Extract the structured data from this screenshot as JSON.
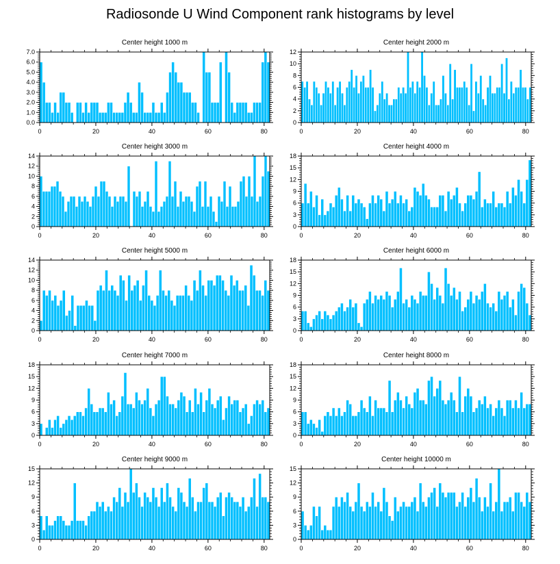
{
  "title": "Radiosonde U Wind Component rank histograms by level",
  "colors": {
    "bar_fill": "#00BFFF",
    "bar_stroke": "#ffffff",
    "axis": "#000000"
  },
  "chart_data": [
    {
      "type": "bar",
      "title": "Center height 1000 m",
      "xlim": [
        0,
        82
      ],
      "ylim": [
        0,
        7
      ],
      "xticks": [
        0,
        20,
        40,
        60,
        80
      ],
      "yticks": [
        0,
        1,
        2,
        3,
        4,
        5,
        6,
        7
      ],
      "ytick_labels": [
        "0.0",
        "1.0",
        "2.0",
        "3.0",
        "4.0",
        "5.0",
        "6.0",
        "7.0"
      ],
      "values": [
        6,
        4,
        2,
        2,
        1,
        2,
        1,
        3,
        3,
        2,
        2,
        1,
        0,
        2,
        2,
        1,
        2,
        1,
        2,
        2,
        2,
        1,
        1,
        1,
        2,
        2,
        1,
        1,
        1,
        1,
        2,
        3,
        2,
        1,
        1,
        4,
        3,
        1,
        1,
        1,
        2,
        1,
        1,
        2,
        1,
        3,
        5,
        6,
        5,
        4,
        4,
        3,
        3,
        3,
        2,
        2,
        1,
        0,
        7,
        5,
        5,
        2,
        2,
        2,
        6,
        0,
        7,
        5,
        2,
        1,
        2,
        2,
        2,
        2,
        1,
        1,
        2,
        2,
        2,
        6,
        7,
        6
      ],
      "xlabel": "",
      "ylabel": ""
    },
    {
      "type": "bar",
      "title": "Center height 2000 m",
      "xlim": [
        0,
        82
      ],
      "ylim": [
        0,
        12
      ],
      "xticks": [
        0,
        20,
        40,
        60,
        80
      ],
      "yticks": [
        0,
        2,
        4,
        6,
        8,
        10,
        12
      ],
      "ytick_labels": [
        "0",
        "2",
        "4",
        "6",
        "8",
        "10",
        "12"
      ],
      "values": [
        7,
        6,
        7,
        4,
        3,
        7,
        6,
        5,
        3,
        5,
        7,
        6,
        5,
        7,
        3,
        6,
        7,
        5,
        3,
        6,
        7,
        9,
        6,
        8,
        5,
        7,
        8,
        6,
        6,
        9,
        6,
        2,
        3,
        5,
        7,
        4,
        5,
        3,
        3,
        4,
        4,
        6,
        5,
        6,
        5,
        12,
        6,
        7,
        5,
        7,
        6,
        12,
        8,
        6,
        3,
        5,
        7,
        3,
        3,
        4,
        8,
        5,
        3,
        10,
        4,
        9,
        6,
        6,
        6,
        7,
        6,
        3,
        10,
        2,
        7,
        5,
        8,
        4,
        3,
        6,
        8,
        5,
        5,
        6,
        6,
        10,
        5,
        11,
        4,
        7,
        5,
        6,
        6,
        9,
        6,
        6,
        4,
        6
      ],
      "xlabel": "",
      "ylabel": ""
    },
    {
      "type": "bar",
      "title": "Center height 3000 m",
      "xlim": [
        0,
        82
      ],
      "ylim": [
        0,
        14
      ],
      "xticks": [
        0,
        20,
        40,
        60,
        80
      ],
      "yticks": [
        0,
        2,
        4,
        6,
        8,
        10,
        12,
        14
      ],
      "ytick_labels": [
        "0",
        "2",
        "4",
        "6",
        "8",
        "10",
        "12",
        "14"
      ],
      "values": [
        10,
        7,
        7,
        7,
        8,
        8,
        9,
        7,
        6,
        3,
        5,
        6,
        6,
        4,
        6,
        5,
        6,
        5,
        4,
        6,
        8,
        6,
        9,
        9,
        7,
        6,
        4,
        6,
        5,
        6,
        6,
        5,
        12,
        0,
        7,
        6,
        7,
        4,
        5,
        7,
        4,
        3,
        13,
        3,
        4,
        5,
        6,
        13,
        6,
        9,
        4,
        7,
        5,
        6,
        6,
        5,
        3,
        8,
        9,
        4,
        9,
        4,
        6,
        3,
        1,
        6,
        5,
        9,
        4,
        8,
        4,
        4,
        5,
        9,
        10,
        6,
        10,
        6,
        14,
        5,
        6,
        10,
        14,
        11
      ],
      "xlabel": "",
      "ylabel": ""
    },
    {
      "type": "bar",
      "title": "Center height 4000 m",
      "xlim": [
        0,
        82
      ],
      "ylim": [
        0,
        18
      ],
      "xticks": [
        0,
        20,
        40,
        60,
        80
      ],
      "yticks": [
        0,
        3,
        6,
        9,
        12,
        15,
        18
      ],
      "ytick_labels": [
        "0",
        "3",
        "6",
        "9",
        "12",
        "15",
        "18"
      ],
      "values": [
        6,
        11,
        6,
        9,
        5,
        8,
        3,
        7,
        3,
        4,
        6,
        5,
        8,
        10,
        7,
        4,
        8,
        4,
        8,
        6,
        7,
        6,
        5,
        2,
        6,
        8,
        6,
        8,
        7,
        4,
        9,
        6,
        7,
        9,
        6,
        8,
        6,
        7,
        4,
        5,
        10,
        9,
        8,
        11,
        8,
        7,
        5,
        5,
        5,
        8,
        8,
        4,
        9,
        7,
        8,
        10,
        6,
        4,
        6,
        8,
        8,
        7,
        9,
        14,
        5,
        7,
        6,
        6,
        9,
        5,
        6,
        6,
        5,
        9,
        6,
        10,
        8,
        12,
        9,
        6,
        12,
        17
      ],
      "xlabel": "",
      "ylabel": ""
    },
    {
      "type": "bar",
      "title": "Center height 5000 m",
      "xlim": [
        0,
        82
      ],
      "ylim": [
        0,
        14
      ],
      "xticks": [
        0,
        20,
        40,
        60,
        80
      ],
      "yticks": [
        0,
        2,
        4,
        6,
        8,
        10,
        12,
        14
      ],
      "ytick_labels": [
        "0",
        "2",
        "4",
        "6",
        "8",
        "10",
        "12",
        "14"
      ],
      "values": [
        2,
        8,
        7,
        8,
        6,
        7,
        5,
        6,
        8,
        3,
        4,
        7,
        1,
        5,
        5,
        5,
        6,
        5,
        5,
        2,
        8,
        9,
        8,
        12,
        8,
        9,
        8,
        7,
        11,
        10,
        6,
        11,
        8,
        9,
        10,
        6,
        9,
        12,
        7,
        6,
        5,
        7,
        12,
        8,
        7,
        8,
        6,
        5,
        7,
        7,
        7,
        9,
        7,
        6,
        10,
        8,
        12,
        9,
        7,
        10,
        10,
        9,
        11,
        11,
        10,
        8,
        7,
        11,
        9,
        10,
        8,
        8,
        9,
        5,
        13,
        11,
        8,
        8,
        7,
        10,
        8
      ],
      "xlabel": "",
      "ylabel": ""
    },
    {
      "type": "bar",
      "title": "Center height 6000 m",
      "xlim": [
        0,
        82
      ],
      "ylim": [
        0,
        18
      ],
      "xticks": [
        0,
        20,
        40,
        60,
        80
      ],
      "yticks": [
        0,
        3,
        6,
        9,
        12,
        15,
        18
      ],
      "ytick_labels": [
        "0",
        "3",
        "6",
        "9",
        "12",
        "15",
        "18"
      ],
      "values": [
        5,
        5,
        2,
        1,
        3,
        4,
        5,
        3,
        5,
        4,
        3,
        4,
        5,
        6,
        7,
        5,
        6,
        8,
        6,
        7,
        2,
        1,
        7,
        8,
        10,
        7,
        9,
        8,
        9,
        8,
        10,
        9,
        6,
        8,
        10,
        16,
        7,
        8,
        6,
        9,
        8,
        7,
        10,
        9,
        9,
        15,
        12,
        8,
        11,
        9,
        7,
        16,
        12,
        9,
        11,
        8,
        10,
        5,
        6,
        8,
        10,
        7,
        9,
        8,
        10,
        12,
        7,
        6,
        7,
        5,
        10,
        8,
        9,
        10,
        6,
        8,
        4,
        10,
        12,
        11,
        7,
        4
      ],
      "xlabel": "",
      "ylabel": ""
    },
    {
      "type": "bar",
      "title": "Center height 7000 m",
      "xlim": [
        0,
        82
      ],
      "ylim": [
        0,
        18
      ],
      "xticks": [
        0,
        20,
        40,
        60,
        80
      ],
      "yticks": [
        0,
        3,
        6,
        9,
        12,
        15,
        18
      ],
      "ytick_labels": [
        "0",
        "3",
        "6",
        "9",
        "12",
        "15",
        "18"
      ],
      "values": [
        3,
        0,
        2,
        4,
        2,
        4,
        5,
        2,
        3,
        4,
        5,
        4,
        5,
        6,
        6,
        5,
        7,
        12,
        8,
        6,
        6,
        7,
        7,
        6,
        11,
        8,
        9,
        5,
        6,
        10,
        16,
        8,
        8,
        7,
        11,
        9,
        8,
        9,
        12,
        7,
        5,
        8,
        9,
        15,
        15,
        10,
        8,
        8,
        7,
        9,
        11,
        10,
        6,
        9,
        6,
        12,
        8,
        11,
        6,
        9,
        12,
        8,
        7,
        9,
        10,
        4,
        7,
        10,
        8,
        9,
        9,
        6,
        7,
        8,
        3,
        5,
        8,
        9,
        8,
        9,
        6,
        7
      ],
      "xlabel": "",
      "ylabel": ""
    },
    {
      "type": "bar",
      "title": "Center height 8000 m",
      "xlim": [
        0,
        82
      ],
      "ylim": [
        0,
        18
      ],
      "xticks": [
        0,
        20,
        40,
        60,
        80
      ],
      "yticks": [
        0,
        3,
        6,
        9,
        12,
        15,
        18
      ],
      "ytick_labels": [
        "0",
        "3",
        "6",
        "9",
        "12",
        "15",
        "18"
      ],
      "values": [
        6,
        6,
        3,
        4,
        3,
        2,
        4,
        1,
        5,
        6,
        5,
        7,
        5,
        7,
        5,
        6,
        9,
        8,
        5,
        5,
        6,
        9,
        7,
        6,
        10,
        5,
        9,
        7,
        7,
        7,
        6,
        14,
        6,
        9,
        11,
        9,
        7,
        10,
        8,
        7,
        11,
        12,
        9,
        9,
        8,
        14,
        15,
        10,
        12,
        14,
        9,
        8,
        9,
        11,
        9,
        6,
        15,
        6,
        10,
        12,
        10,
        6,
        7,
        9,
        8,
        10,
        7,
        8,
        5,
        7,
        9,
        7,
        5,
        9,
        9,
        7,
        9,
        7,
        11,
        7,
        8,
        8
      ],
      "xlabel": "",
      "ylabel": ""
    },
    {
      "type": "bar",
      "title": "Center height 9000 m",
      "xlim": [
        0,
        82
      ],
      "ylim": [
        0,
        15
      ],
      "xticks": [
        0,
        20,
        40,
        60,
        80
      ],
      "yticks": [
        0,
        3,
        6,
        9,
        12,
        15
      ],
      "ytick_labels": [
        "0",
        "3",
        "6",
        "9",
        "12",
        "15"
      ],
      "values": [
        5,
        2,
        5,
        3,
        3,
        4,
        5,
        5,
        4,
        3,
        3,
        4,
        12,
        4,
        4,
        4,
        3,
        5,
        6,
        6,
        8,
        7,
        8,
        6,
        7,
        6,
        9,
        8,
        11,
        7,
        10,
        8,
        15,
        10,
        12,
        9,
        7,
        10,
        9,
        8,
        11,
        9,
        7,
        11,
        8,
        12,
        9,
        7,
        6,
        11,
        10,
        8,
        7,
        13,
        9,
        6,
        8,
        8,
        11,
        12,
        8,
        8,
        7,
        9,
        10,
        5,
        9,
        10,
        9,
        8,
        8,
        7,
        9,
        6,
        7,
        9,
        13,
        7,
        14,
        9,
        9,
        8
      ],
      "xlabel": "",
      "ylabel": ""
    },
    {
      "type": "bar",
      "title": "Center height 10000 m",
      "xlim": [
        0,
        82
      ],
      "ylim": [
        0,
        15
      ],
      "xticks": [
        0,
        20,
        40,
        60,
        80
      ],
      "yticks": [
        0,
        3,
        6,
        9,
        12,
        15
      ],
      "ytick_labels": [
        "0",
        "3",
        "6",
        "9",
        "12",
        "15"
      ],
      "values": [
        6,
        3,
        2,
        3,
        7,
        5,
        7,
        2,
        3,
        2,
        2,
        7,
        9,
        7,
        9,
        8,
        10,
        7,
        6,
        8,
        12,
        7,
        6,
        8,
        7,
        10,
        7,
        8,
        6,
        11,
        8,
        5,
        4,
        9,
        6,
        7,
        8,
        7,
        7,
        8,
        9,
        6,
        12,
        8,
        7,
        9,
        10,
        11,
        7,
        12,
        10,
        9,
        10,
        10,
        10,
        7,
        8,
        10,
        7,
        9,
        11,
        8,
        13,
        9,
        6,
        9,
        7,
        12,
        6,
        8,
        15,
        6,
        8,
        8,
        9,
        6,
        10,
        10,
        8,
        7,
        10,
        8
      ],
      "xlabel": "",
      "ylabel": ""
    }
  ]
}
